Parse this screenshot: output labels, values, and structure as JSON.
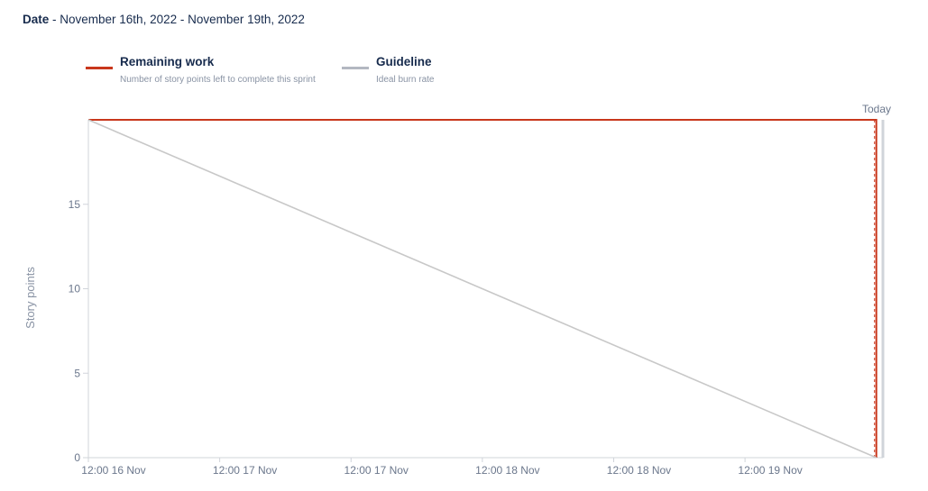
{
  "header": {
    "date_label": "Date",
    "separator": " - ",
    "date_range": "November 16th, 2022 - November 19th, 2022"
  },
  "legend": [
    {
      "title": "Remaining work",
      "description": "Number of story points left to complete this sprint",
      "color": "#c9371c"
    },
    {
      "title": "Guideline",
      "description": "Ideal burn rate",
      "color": "#b3b8c1"
    }
  ],
  "chart_data": {
    "type": "line",
    "ylabel": "Story points",
    "ylim": [
      0,
      20
    ],
    "y_ticks": [
      0,
      5,
      10,
      15
    ],
    "x_tick_labels": [
      "12:00 16 Nov",
      "12:00 17 Nov",
      "12:00 17 Nov",
      "12:00 18 Nov",
      "12:00 18 Nov",
      "12:00 19 Nov"
    ],
    "today_label": "Today",
    "series": [
      {
        "name": "Remaining work",
        "points": [
          [
            0,
            20
          ],
          [
            6,
            20
          ],
          [
            6,
            0
          ]
        ]
      },
      {
        "name": "Guideline",
        "points": [
          [
            0,
            20
          ],
          [
            6,
            0
          ]
        ]
      }
    ],
    "x_range": [
      0,
      6.05
    ],
    "today_x": 6
  }
}
